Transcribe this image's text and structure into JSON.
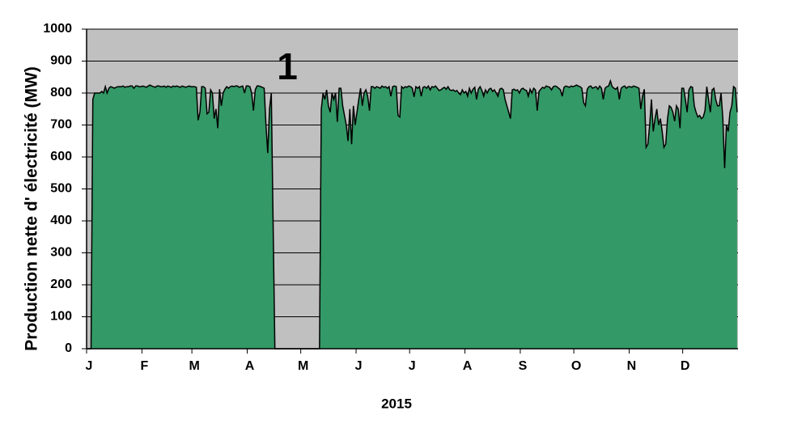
{
  "chart_data": {
    "type": "area",
    "ylabel": "Production nette d' électricité (MW)",
    "xlabel": "2015",
    "annotation": "1",
    "color": "#339966",
    "line_color": "#000000",
    "plot_background": "#c0c0c0",
    "grid": true,
    "ylim": [
      0,
      1000
    ],
    "yticks": [
      0,
      100,
      200,
      300,
      400,
      500,
      600,
      700,
      800,
      900,
      1000
    ],
    "xlim": [
      0,
      365
    ],
    "xticks": [
      {
        "value": 0,
        "label": "J"
      },
      {
        "value": 31,
        "label": "F"
      },
      {
        "value": 59,
        "label": "M"
      },
      {
        "value": 90,
        "label": "A"
      },
      {
        "value": 120,
        "label": "M"
      },
      {
        "value": 151,
        "label": "J"
      },
      {
        "value": 181,
        "label": "J"
      },
      {
        "value": 212,
        "label": "A"
      },
      {
        "value": 243,
        "label": "S"
      },
      {
        "value": 273,
        "label": "O"
      },
      {
        "value": 304,
        "label": "N"
      },
      {
        "value": 334,
        "label": "D"
      }
    ],
    "values": [
      0,
      0,
      0,
      780,
      800,
      800,
      800,
      800,
      805,
      800,
      820,
      800,
      815,
      820,
      818,
      815,
      818,
      820,
      820,
      820,
      822,
      818,
      820,
      820,
      822,
      822,
      815,
      822,
      822,
      820,
      820,
      822,
      820,
      818,
      822,
      825,
      822,
      820,
      818,
      822,
      822,
      820,
      820,
      822,
      818,
      822,
      820,
      818,
      822,
      820,
      822,
      820,
      818,
      822,
      820,
      818,
      820,
      822,
      820,
      820,
      820,
      818,
      715,
      740,
      820,
      820,
      815,
      735,
      740,
      810,
      800,
      720,
      750,
      690,
      812,
      760,
      800,
      812,
      820,
      815,
      820,
      822,
      820,
      822,
      822,
      818,
      820,
      822,
      800,
      822,
      822,
      820,
      800,
      745,
      810,
      822,
      822,
      820,
      818,
      815,
      700,
      612,
      750,
      800,
      400,
      0,
      0,
      0,
      0,
      0,
      0,
      0,
      0,
      0,
      0,
      0,
      0,
      0,
      0,
      0,
      0,
      0,
      0,
      0,
      0,
      0,
      0,
      0,
      0,
      0,
      0,
      750,
      800,
      780,
      810,
      760,
      740,
      800,
      780,
      800,
      710,
      815,
      815,
      760,
      730,
      700,
      650,
      750,
      640,
      760,
      700,
      740,
      780,
      815,
      760,
      800,
      810,
      790,
      745,
      820,
      820,
      815,
      820,
      818,
      815,
      822,
      818,
      820,
      815,
      820,
      790,
      820,
      822,
      820,
      730,
      725,
      820,
      815,
      820,
      818,
      822,
      820,
      815,
      788,
      820,
      815,
      820,
      790,
      818,
      820,
      815,
      822,
      810,
      820,
      818,
      822,
      815,
      808,
      810,
      815,
      818,
      812,
      820,
      810,
      808,
      810,
      805,
      808,
      800,
      795,
      810,
      800,
      805,
      790,
      815,
      800,
      812,
      818,
      780,
      812,
      820,
      808,
      790,
      810,
      800,
      812,
      815,
      805,
      810,
      800,
      790,
      812,
      815,
      810,
      780,
      760,
      740,
      720,
      810,
      812,
      808,
      810,
      800,
      812,
      815,
      810,
      808,
      790,
      812,
      800,
      815,
      810,
      745,
      805,
      812,
      818,
      815,
      822,
      820,
      818,
      810,
      820,
      822,
      820,
      815,
      810,
      790,
      818,
      822,
      820,
      818,
      822,
      820,
      822,
      825,
      822,
      820,
      815,
      770,
      760,
      812,
      820,
      822,
      815,
      818,
      820,
      812,
      822,
      815,
      780,
      815,
      820,
      822,
      838,
      820,
      815,
      812,
      818,
      780,
      815,
      820,
      822,
      815,
      820,
      820,
      818,
      822,
      820,
      818,
      815,
      750,
      790,
      812,
      630,
      640,
      700,
      780,
      680,
      720,
      750,
      700,
      720,
      680,
      630,
      640,
      720,
      760,
      755,
      740,
      712,
      760,
      750,
      690,
      815,
      815,
      780,
      740,
      810,
      820,
      818,
      760,
      740,
      725,
      730,
      720,
      725,
      745,
      820,
      780,
      740,
      810,
      815,
      780,
      760,
      760,
      800,
      720,
      565,
      700,
      680,
      740,
      760,
      820,
      815,
      740
    ]
  }
}
